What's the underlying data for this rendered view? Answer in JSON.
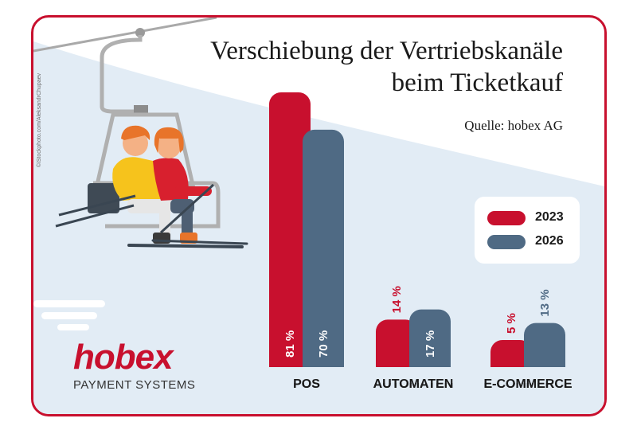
{
  "title_line1": "Verschiebung der Vertriebskanäle",
  "title_line2": "beim Ticketkauf",
  "source": "Quelle: hobex AG",
  "photo_credit": "©iStockphoto.com/AleksandrChupaev",
  "logo": {
    "word": "hobex",
    "subtitle": "PAYMENT SYSTEMS"
  },
  "colors": {
    "frame": "#c8102e",
    "series_2023": "#c8102e",
    "series_2026": "#4f6a84",
    "snow": "#e2ecf5"
  },
  "chart_data": {
    "type": "bar",
    "categories": [
      "POS",
      "AUTOMATEN",
      "E-COMMERCE"
    ],
    "series": [
      {
        "name": "2023",
        "values": [
          81,
          14,
          5
        ],
        "labels": [
          "81 %",
          "14 %",
          "5 %"
        ]
      },
      {
        "name": "2026",
        "values": [
          70,
          17,
          13
        ],
        "labels": [
          "70 %",
          "17 %",
          "13 %"
        ]
      }
    ],
    "legend": [
      "2023",
      "2026"
    ],
    "legend_position": "right",
    "grid": false,
    "ylim": [
      0,
      81
    ]
  }
}
